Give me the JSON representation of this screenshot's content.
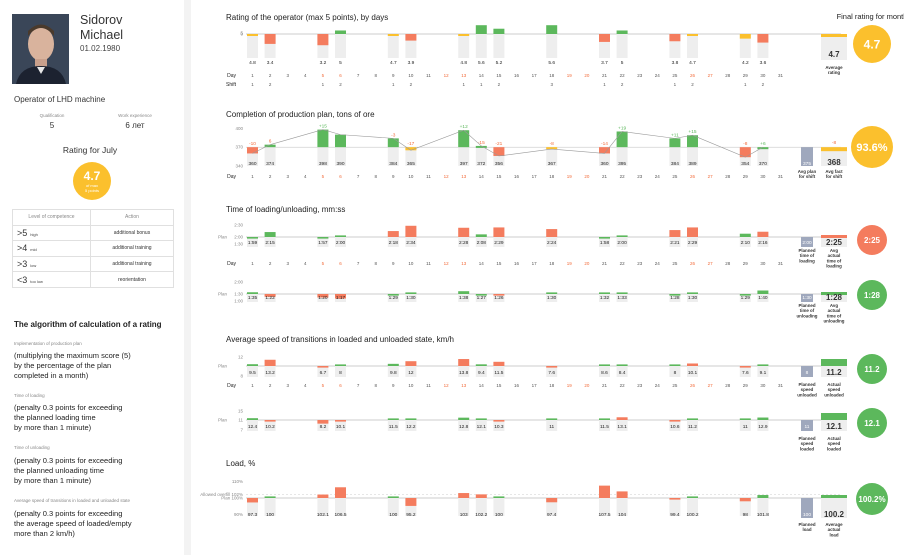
{
  "profile": {
    "last_name": "Sidorov",
    "first_name": "Michael",
    "birth_date": "01.02.1980",
    "position": "Operator of LHD machine",
    "qualification_label": "Qualification",
    "qualification_value": "5",
    "experience_label": "Work experience",
    "experience_value": "6 лет",
    "rating_title": "Rating for July",
    "rating_value": "4.7",
    "rating_sub1": "of max",
    "rating_sub2": "5 points"
  },
  "competence": {
    "header_level": "Level of competence",
    "header_action": "Action",
    "rows": [
      {
        "sym": ">5",
        "lvl": "high",
        "action": "additional bonus"
      },
      {
        "sym": ">4",
        "lvl": "mid",
        "action": "additional training"
      },
      {
        "sym": ">3",
        "lvl": "low",
        "action": "additional training"
      },
      {
        "sym": "<3",
        "lvl": "too low",
        "action": "reorientation"
      }
    ]
  },
  "algorithm": {
    "title": "The algorithm of calculation of a rating",
    "items": [
      {
        "label": "Implementation of production plan",
        "lines": [
          "(multiplying the maximum score (5)",
          "by the percentage of the plan",
          "completed in a month)"
        ]
      },
      {
        "label": "Time of loading",
        "lines": [
          "(penalty 0.3 points for exceeding",
          "the planned loading time",
          "by more than 1 minute)"
        ]
      },
      {
        "label": "Time of unloading",
        "lines": [
          "(penalty 0.3 points for exceeding",
          "the planned unloading time",
          "by more than 1 minute)"
        ]
      },
      {
        "label": "Average speed of transitions in loaded and unloaded state",
        "lines": [
          "(penalty 0.3 points for exceeding",
          "the average speed of loaded/empty",
          "more than 2 km/h)"
        ]
      }
    ]
  },
  "colors": {
    "green": "#5cb85c",
    "red": "#f47c5e",
    "yellow": "#fbc02d",
    "gray_bar": "#9fa8bd",
    "light_bg": "#eeeeee",
    "line": "#999999",
    "weekend": "#f26b3a"
  },
  "days": [
    1,
    2,
    3,
    4,
    5,
    6,
    7,
    8,
    9,
    10,
    11,
    12,
    13,
    14,
    15,
    16,
    17,
    18,
    19,
    20,
    21,
    22,
    23,
    24,
    25,
    26,
    27,
    28,
    29,
    30,
    31
  ],
  "weekend_days": [
    5,
    6,
    12,
    13,
    19,
    20,
    26,
    27
  ],
  "chart_data": [
    {
      "type": "bar",
      "title": "Rating of the operator (max 5 points), by days",
      "ylabels": [
        "5",
        "0"
      ],
      "row_labels": [
        "Day",
        "Shift"
      ],
      "values": [
        4.8,
        3.4,
        null,
        null,
        3.2,
        5,
        null,
        null,
        4.7,
        3.9,
        null,
        null,
        4.8,
        5.6,
        5.2,
        null,
        null,
        5.6,
        null,
        null,
        3.7,
        5,
        null,
        null,
        3.8,
        4.7,
        null,
        null,
        4.2,
        3.6,
        null
      ],
      "shift": [
        "1",
        "2",
        "",
        "",
        "1",
        "2",
        "",
        "",
        "1",
        "2",
        "",
        "",
        "1",
        "1",
        "2",
        "",
        "",
        "3",
        "",
        "",
        "1",
        "2",
        "",
        "",
        "1",
        "2",
        "",
        "",
        "1",
        "2",
        ""
      ],
      "summary": {
        "value": "4.7",
        "label": "Average rating"
      },
      "final": {
        "title": "Final rating for month",
        "value": "4.7"
      }
    },
    {
      "type": "bar",
      "title": "Completion of production plan, tons of ore",
      "ylabels": [
        "400",
        "370",
        "340"
      ],
      "plan": 370,
      "values": [
        360,
        374,
        null,
        null,
        398,
        390,
        null,
        null,
        384,
        365,
        null,
        null,
        397,
        372,
        356,
        null,
        null,
        367,
        null,
        null,
        360,
        395,
        null,
        null,
        384,
        389,
        null,
        null,
        354,
        370,
        null
      ],
      "deltas": [
        "-10",
        "6",
        "",
        "",
        "+15",
        "",
        "",
        "",
        "-3",
        "-17",
        "",
        "",
        "+12",
        "-15",
        "-21",
        "",
        "",
        "-8",
        "",
        "",
        "-14",
        "+19",
        "",
        "",
        "+11",
        "+15",
        "",
        "",
        "-8",
        "+6",
        ""
      ],
      "summary_plan": {
        "value": "375",
        "label": "Avg plan for shift"
      },
      "summary_fact": {
        "value": "368",
        "label": "Avg fact for shift",
        "delta": "-8"
      },
      "circle": "93.6%"
    },
    {
      "type": "bar",
      "title": "Time of loading/unloading, mm:ss",
      "sub": "loading",
      "ylabels": [
        "2:30",
        "2:00",
        "1:30"
      ],
      "plan_label": "Plan",
      "values": [
        "1:59",
        "2:15",
        "",
        "",
        "1:57",
        "2:00",
        "",
        "",
        "2:18",
        "2:34",
        "",
        "",
        "2:28",
        "2:08",
        "2:29",
        "",
        "",
        "2:24",
        "",
        "",
        "1:58",
        "2:00",
        "",
        "",
        "2:21",
        "2:29",
        "",
        "",
        "2:10",
        "2:16",
        ""
      ],
      "summary_plan": {
        "value": "2:00",
        "label": "Planned time of loading"
      },
      "summary_fact": {
        "value": "2:25",
        "label": "Avg actual time of loading"
      },
      "circle": "2:25"
    },
    {
      "type": "bar",
      "sub": "unloading",
      "ylabels": [
        "2:00",
        "1:30",
        "1:00"
      ],
      "plan_label": "Plan",
      "values": [
        "1:35",
        "1:22",
        "",
        "",
        "1:20",
        "1:17",
        "",
        "",
        "1:29",
        "1:30",
        "",
        "",
        "1:38",
        "1:27",
        "1:26",
        "",
        "",
        "1:30",
        "",
        "",
        "1:32",
        "1:33",
        "",
        "",
        "1:28",
        "1:30",
        "",
        "",
        "1:29",
        "1:40",
        ""
      ],
      "summary_plan": {
        "value": "1:30",
        "label": "Planned time of unloading"
      },
      "summary_fact": {
        "value": "1:28",
        "label": "Avg actual time of unloading"
      },
      "circle": "1:28"
    },
    {
      "type": "bar",
      "title": "Average speed of transitions in loaded and unloaded state, km/h",
      "sub": "unloaded",
      "ylabels": [
        "12",
        "8"
      ],
      "plan_label": "Plan",
      "values": [
        9.5,
        13.2,
        null,
        null,
        6.7,
        8,
        null,
        null,
        9.8,
        12,
        null,
        null,
        13.8,
        9.4,
        11.5,
        null,
        null,
        7.6,
        null,
        null,
        8.6,
        8.4,
        null,
        null,
        8,
        10.1,
        null,
        null,
        7.6,
        9.1,
        null
      ],
      "summary_plan": {
        "value": "8",
        "label": "Planned speed unloaded"
      },
      "summary_fact": {
        "value": "11.2",
        "label": "Actual speed unloaded"
      },
      "circle": "11.2"
    },
    {
      "type": "bar",
      "sub": "loaded",
      "ylabels": [
        "15",
        "11",
        "7"
      ],
      "plan_label": "Plan",
      "values": [
        12.4,
        10.2,
        null,
        null,
        8.2,
        10.1,
        null,
        null,
        11.5,
        12.2,
        null,
        null,
        12.8,
        12.1,
        10.3,
        null,
        null,
        11,
        null,
        null,
        11.5,
        13.1,
        null,
        null,
        10.6,
        11.2,
        null,
        null,
        11,
        12.9,
        null
      ],
      "summary_plan": {
        "value": "11",
        "label": "Planned speed loaded"
      },
      "summary_fact": {
        "value": "12.1",
        "label": "Actual speed loaded"
      },
      "circle": "12.1"
    },
    {
      "type": "bar",
      "title": "Load, %",
      "ylabels": [
        "110%",
        "Allowed overfill 102%",
        "Plan 100%",
        "90%"
      ],
      "values": [
        97.3,
        100,
        null,
        null,
        102.1,
        106.5,
        null,
        null,
        100,
        95.2,
        null,
        null,
        103,
        102.2,
        100,
        null,
        null,
        97.4,
        null,
        null,
        107.5,
        104,
        null,
        null,
        99.4,
        100.2,
        null,
        null,
        98,
        101.8,
        null
      ],
      "summary_plan": {
        "value": "100",
        "label": "Planned load"
      },
      "summary_fact": {
        "value": "100.2",
        "label": "Average actual load"
      },
      "circle": "100.2%"
    }
  ]
}
